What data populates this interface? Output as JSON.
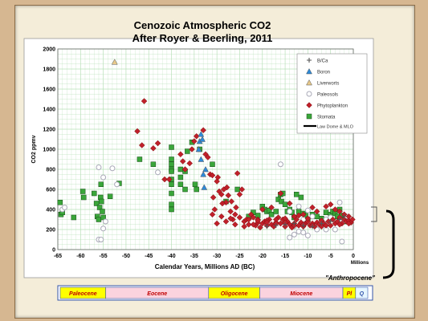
{
  "chart_data": {
    "type": "scatter",
    "title": "Cenozoic Atmospheric CO2",
    "subtitle": "After Royer & Beerling, 2011",
    "xlabel": "Calendar Years, Millions AD (BC)",
    "ylabel": "CO2 ppmv",
    "xlim": [
      -65,
      0
    ],
    "ylim": [
      0,
      2000
    ],
    "x_ticks": [
      -65,
      -60,
      -55,
      -50,
      -45,
      -40,
      -35,
      -30,
      -25,
      -20,
      -15,
      -10,
      -5,
      0
    ],
    "y_ticks": [
      0,
      200,
      400,
      600,
      800,
      1000,
      1200,
      1400,
      1600,
      1800,
      2000
    ],
    "x_unit_label": "Millions",
    "grid": true,
    "legend_position": "top-right",
    "series": [
      {
        "name": "B/Ca",
        "marker": "plus",
        "color": "#555555",
        "points": [
          [
            -19,
            230
          ],
          [
            -17,
            240
          ],
          [
            -15,
            250
          ],
          [
            -13,
            260
          ],
          [
            -11,
            240
          ],
          [
            -9,
            230
          ],
          [
            -7,
            260
          ],
          [
            -5,
            280
          ],
          [
            -3,
            300
          ],
          [
            -2,
            330
          ]
        ]
      },
      {
        "name": "Boron",
        "marker": "triangle",
        "color": "#2e8ad8",
        "points": [
          [
            -34,
            1000
          ],
          [
            -33.8,
            1080
          ],
          [
            -33.5,
            1150
          ],
          [
            -33.2,
            1100
          ],
          [
            -33.5,
            900
          ],
          [
            -33,
            750
          ],
          [
            -32.8,
            620
          ],
          [
            -32.5,
            800
          ]
        ]
      },
      {
        "name": "Liverworts",
        "marker": "triangle",
        "color": "#e8c98a",
        "points": [
          [
            -52.5,
            1870
          ]
        ]
      },
      {
        "name": "Paleosols",
        "marker": "circle",
        "color": "#aaaab8",
        "points": [
          [
            -64,
            400
          ],
          [
            -63.5,
            420
          ],
          [
            -56,
            820
          ],
          [
            -56,
            100
          ],
          [
            -55.5,
            100
          ],
          [
            -55,
            720
          ],
          [
            -53,
            810
          ],
          [
            -52,
            650
          ],
          [
            -54.5,
            280
          ],
          [
            -55,
            210
          ],
          [
            -43,
            770
          ],
          [
            -16,
            850
          ],
          [
            -15,
            300
          ],
          [
            -14,
            120
          ],
          [
            -13,
            150
          ],
          [
            -12,
            180
          ],
          [
            -11,
            170
          ],
          [
            -10,
            140
          ],
          [
            -8,
            200
          ],
          [
            -7,
            250
          ],
          [
            -6,
            300
          ],
          [
            -4,
            200
          ],
          [
            -3,
            470
          ],
          [
            -2.5,
            80
          ],
          [
            -2,
            290
          ],
          [
            -1.5,
            330
          ],
          [
            -12,
            430
          ],
          [
            -9,
            330
          ],
          [
            -5,
            320
          ],
          [
            -14,
            380
          ],
          [
            -13,
            230
          ],
          [
            -11,
            300
          ],
          [
            -10,
            390
          ],
          [
            -6,
            200
          ]
        ]
      },
      {
        "name": "Phytoplankton",
        "marker": "diamond",
        "color": "#c0202a",
        "points": [
          [
            -46,
            1480
          ],
          [
            -47.5,
            1180
          ],
          [
            -46.5,
            1040
          ],
          [
            -44,
            1010
          ],
          [
            -43,
            1060
          ],
          [
            -41.5,
            700
          ],
          [
            -40.5,
            700
          ],
          [
            -38,
            950
          ],
          [
            -37.5,
            880
          ],
          [
            -37,
            800
          ],
          [
            -36,
            860
          ],
          [
            -35.5,
            1000
          ],
          [
            -35,
            1080
          ],
          [
            -34.5,
            1130
          ],
          [
            -33,
            1190
          ],
          [
            -32.5,
            950
          ],
          [
            -32,
            920
          ],
          [
            -31.5,
            750
          ],
          [
            -31,
            740
          ],
          [
            -30.5,
            400
          ],
          [
            -30,
            680
          ],
          [
            -29.5,
            580
          ],
          [
            -29,
            550
          ],
          [
            -28.5,
            600
          ],
          [
            -28,
            470
          ],
          [
            -27.5,
            540
          ],
          [
            -27,
            380
          ],
          [
            -26.5,
            300
          ],
          [
            -26,
            350
          ],
          [
            -25.5,
            760
          ],
          [
            -25,
            550
          ],
          [
            -24.5,
            600
          ],
          [
            -24,
            280
          ],
          [
            -23.5,
            300
          ],
          [
            -23,
            250
          ],
          [
            -22.5,
            350
          ],
          [
            -22,
            320
          ],
          [
            -21.5,
            240
          ],
          [
            -21,
            300
          ],
          [
            -20.5,
            220
          ],
          [
            -20,
            260
          ],
          [
            -19.5,
            280
          ],
          [
            -19,
            240
          ],
          [
            -18.5,
            300
          ],
          [
            -18,
            250
          ],
          [
            -17.5,
            230
          ],
          [
            -17,
            270
          ],
          [
            -16.5,
            320
          ],
          [
            -16,
            260
          ],
          [
            -15.5,
            300
          ],
          [
            -15,
            230
          ],
          [
            -14.5,
            280
          ],
          [
            -14,
            250
          ],
          [
            -13.5,
            220
          ],
          [
            -13,
            260
          ],
          [
            -12.5,
            300
          ],
          [
            -12,
            240
          ],
          [
            -11.5,
            270
          ],
          [
            -11,
            230
          ],
          [
            -10.5,
            260
          ],
          [
            -10,
            280
          ],
          [
            -9.5,
            240
          ],
          [
            -9,
            260
          ],
          [
            -8.5,
            230
          ],
          [
            -8,
            270
          ],
          [
            -7.5,
            250
          ],
          [
            -7,
            290
          ],
          [
            -6.5,
            260
          ],
          [
            -6,
            240
          ],
          [
            -5.5,
            280
          ],
          [
            -5,
            450
          ],
          [
            -4.5,
            300
          ],
          [
            -4,
            260
          ],
          [
            -3.5,
            280
          ],
          [
            -3,
            320
          ],
          [
            -2.5,
            260
          ],
          [
            -2,
            300
          ],
          [
            -1.5,
            280
          ],
          [
            -1,
            290
          ],
          [
            -0.5,
            270
          ],
          [
            -0.2,
            300
          ],
          [
            -20,
            400
          ],
          [
            -18,
            420
          ],
          [
            -16,
            560
          ],
          [
            -14,
            460
          ],
          [
            -12,
            340
          ],
          [
            -10,
            310
          ],
          [
            -8,
            380
          ],
          [
            -6,
            430
          ],
          [
            -4,
            400
          ],
          [
            -3,
            380
          ],
          [
            -2,
            350
          ],
          [
            -1,
            330
          ],
          [
            -9,
            420
          ],
          [
            -11,
            350
          ],
          [
            -13,
            330
          ],
          [
            -15,
            310
          ],
          [
            -17,
            300
          ],
          [
            -19,
            290
          ],
          [
            -21,
            270
          ],
          [
            -22,
            250
          ],
          [
            -24,
            230
          ],
          [
            -26,
            250
          ],
          [
            -28,
            280
          ],
          [
            -30,
            260
          ],
          [
            -29,
            330
          ],
          [
            -27,
            310
          ],
          [
            -25,
            320
          ],
          [
            -23,
            300
          ],
          [
            -21,
            290
          ],
          [
            -19,
            270
          ],
          [
            -17,
            260
          ],
          [
            -15,
            270
          ],
          [
            -13,
            240
          ],
          [
            -11,
            250
          ],
          [
            -9,
            240
          ],
          [
            -7,
            230
          ],
          [
            -5,
            240
          ],
          [
            -3,
            250
          ],
          [
            -1,
            260
          ],
          [
            -31,
            350
          ],
          [
            -30.8,
            520
          ],
          [
            -29.8,
            720
          ],
          [
            -28.8,
            460
          ],
          [
            -27.8,
            620
          ],
          [
            -26.8,
            480
          ],
          [
            -25.8,
            420
          ]
        ]
      },
      {
        "name": "Stomata",
        "marker": "square",
        "color": "#3aa63a",
        "points": [
          [
            -64.5,
            470
          ],
          [
            -64.3,
            350
          ],
          [
            -64,
            370
          ],
          [
            -61.5,
            320
          ],
          [
            -59.5,
            580
          ],
          [
            -59.3,
            520
          ],
          [
            -57,
            560
          ],
          [
            -56.5,
            460
          ],
          [
            -56.3,
            330
          ],
          [
            -56,
            300
          ],
          [
            -55.8,
            420
          ],
          [
            -55.6,
            520
          ],
          [
            -55.4,
            480
          ],
          [
            -55.2,
            380
          ],
          [
            -55,
            320
          ],
          [
            -55.5,
            650
          ],
          [
            -53.5,
            530
          ],
          [
            -51.5,
            660
          ],
          [
            -47,
            900
          ],
          [
            -44,
            850
          ],
          [
            -40,
            1020
          ],
          [
            -40,
            900
          ],
          [
            -40,
            850
          ],
          [
            -40,
            800
          ],
          [
            -40,
            780
          ],
          [
            -40,
            700
          ],
          [
            -40,
            650
          ],
          [
            -40,
            560
          ],
          [
            -40,
            450
          ],
          [
            -40,
            400
          ],
          [
            -38,
            800
          ],
          [
            -38,
            720
          ],
          [
            -38,
            650
          ],
          [
            -37,
            780
          ],
          [
            -37,
            600
          ],
          [
            -36.5,
            980
          ],
          [
            -35.5,
            1070
          ],
          [
            -34.8,
            650
          ],
          [
            -34.5,
            600
          ],
          [
            -33.8,
            1000
          ],
          [
            -31,
            850
          ],
          [
            -28,
            480
          ],
          [
            -25.5,
            600
          ],
          [
            -23,
            330
          ],
          [
            -22,
            370
          ],
          [
            -21,
            340
          ],
          [
            -20,
            430
          ],
          [
            -19.5,
            400
          ],
          [
            -19,
            380
          ],
          [
            -18.5,
            390
          ],
          [
            -18,
            350
          ],
          [
            -17,
            380
          ],
          [
            -16.5,
            500
          ],
          [
            -16,
            550
          ],
          [
            -15.8,
            480
          ],
          [
            -15.5,
            560
          ],
          [
            -15,
            450
          ],
          [
            -14.5,
            380
          ],
          [
            -14,
            400
          ],
          [
            -13,
            320
          ],
          [
            -12,
            380
          ],
          [
            -11,
            360
          ],
          [
            -10.5,
            340
          ],
          [
            -10,
            300
          ],
          [
            -9,
            350
          ],
          [
            -8,
            330
          ],
          [
            -7,
            310
          ],
          [
            -6,
            370
          ],
          [
            -5,
            350
          ],
          [
            -4.5,
            380
          ],
          [
            -4,
            360
          ],
          [
            -3.5,
            330
          ],
          [
            -3,
            400
          ],
          [
            -2.5,
            340
          ],
          [
            -2,
            300
          ],
          [
            -1.5,
            280
          ],
          [
            -12.5,
            550
          ],
          [
            -11.5,
            520
          ],
          [
            -13.5,
            370
          ]
        ]
      }
    ],
    "overlay_series": {
      "name": "Law Dome & MLO",
      "style": "line",
      "color": "#000000"
    },
    "annotation": "\"Anthropocene\""
  },
  "epochs": [
    {
      "name": "Paleocene",
      "start": -65.5,
      "end": -55.8,
      "color": "#ffff00"
    },
    {
      "name": "Eocene",
      "start": -55.8,
      "end": -33.9,
      "color": "#fbd3de"
    },
    {
      "name": "Oligocene",
      "start": -33.9,
      "end": -23.0,
      "color": "#ffff00"
    },
    {
      "name": "Miocene",
      "start": -23.0,
      "end": -5.3,
      "color": "#fbd3de"
    },
    {
      "name": "Pl",
      "start": -5.3,
      "end": -2.6,
      "color": "#ffff00"
    },
    {
      "name": "Q",
      "start": -2.6,
      "end": 0,
      "color": "#e6f6ff"
    }
  ],
  "colors": {
    "slide_border": "#d6b791",
    "panel": "#f4edd9",
    "plot_bg": "#ffffff",
    "grid": "#b8e0b8",
    "epoch_text": "#c00000"
  }
}
